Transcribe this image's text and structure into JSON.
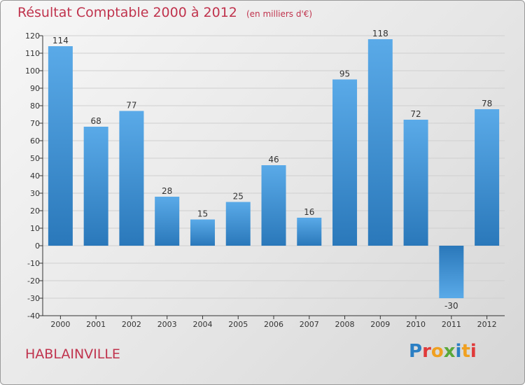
{
  "title": "Résultat Comptable 2000 à 2012",
  "subtitle": "(en milliers d'€)",
  "commune": "HABLAINVILLE",
  "logo": {
    "text": "Proxiti",
    "letters": [
      "P",
      "r",
      "o",
      "x",
      "i",
      "t",
      "i"
    ]
  },
  "colors": {
    "title": "#c0334d",
    "bar_light": "#5aaae8",
    "bar_dark": "#2a78ba",
    "axis": "#333333"
  },
  "chart_data": {
    "type": "bar",
    "title": "Résultat Comptable 2000 à 2012",
    "subtitle": "(en milliers d'€)",
    "categories": [
      "2000",
      "2001",
      "2002",
      "2003",
      "2004",
      "2005",
      "2006",
      "2007",
      "2008",
      "2009",
      "2010",
      "2011",
      "2012"
    ],
    "values": [
      114,
      68,
      77,
      28,
      15,
      25,
      46,
      16,
      95,
      118,
      72,
      -30,
      78
    ],
    "ylim": [
      -40,
      120
    ],
    "yticks": [
      -40,
      -30,
      -20,
      -10,
      0,
      10,
      20,
      30,
      40,
      50,
      60,
      70,
      80,
      90,
      100,
      110,
      120
    ],
    "grid": true,
    "legend": "none"
  }
}
